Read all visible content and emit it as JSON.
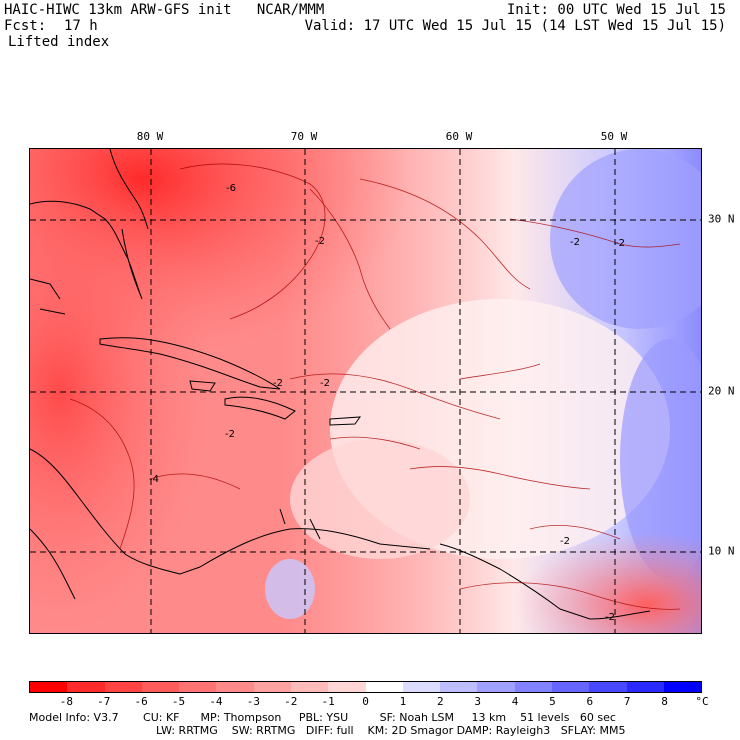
{
  "header": {
    "model_title": "HAIC-HIWC 13km ARW-GFS init   NCAR/MMM",
    "init": "Init: 00 UTC Wed 15 Jul 15",
    "fcst_label": "Fcst:",
    "fcst_value": "17 h",
    "valid": "Valid: 17 UTC Wed 15 Jul 15 (14 LST Wed 15 Jul 15)",
    "field": "Lifted index"
  },
  "map": {
    "lon_labels": [
      "80 W",
      "70 W",
      "60 W",
      "50 W"
    ],
    "lat_labels": [
      "30 N",
      "20 N",
      "10 N"
    ],
    "contour_label": "2",
    "contour_label_neg": "-2",
    "contour_label_4": "-4",
    "contour_label_6": "-6"
  },
  "colorbar": {
    "ticks": [
      "-8",
      "-7",
      "-6",
      "-5",
      "-4",
      "-3",
      "-2",
      "-1",
      "0",
      "1",
      "2",
      "3",
      "4",
      "5",
      "6",
      "7",
      "8"
    ],
    "unit": "°C",
    "colors": [
      "#ff0000",
      "#ff2a2a",
      "#ff4444",
      "#ff5c5c",
      "#ff7373",
      "#ff8a8a",
      "#ffa2a2",
      "#ffbaba",
      "#ffd6d6",
      "#ffffff",
      "#dcdcff",
      "#bdbdff",
      "#a0a0ff",
      "#8383ff",
      "#6666ff",
      "#4848ff",
      "#2a2aff",
      "#0000ff"
    ]
  },
  "model_info": {
    "line1": "Model Info: V3.7       CU: KF      MP: Thompson     PBL: YSU         SF: Noah LSM     13 km    51 levels   60 sec",
    "line2": "LW: RRTMG    SW: RRTMG   DIFF: full    KM: 2D Smagor DAMP: Rayleigh3   SFLAY: MM5"
  }
}
